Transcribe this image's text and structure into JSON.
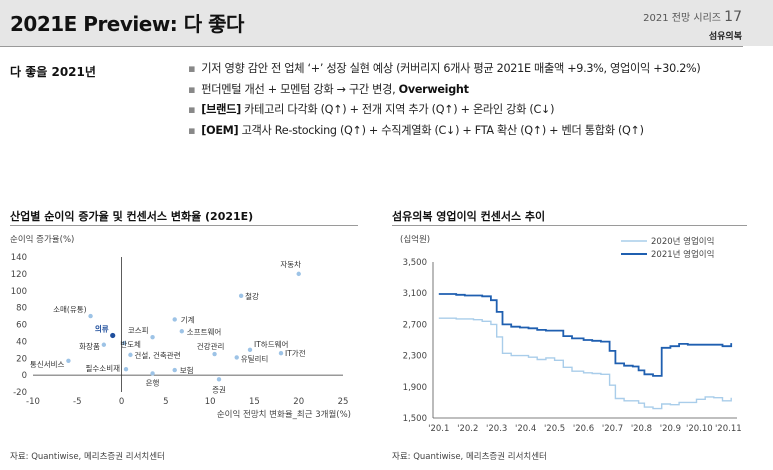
{
  "header": {
    "title": "2021E Preview: 다 좋다",
    "series_label": "2021 전망 시리즈",
    "series_number": "17",
    "section": "섬유의복"
  },
  "summary": {
    "label": "다 좋을 2021년",
    "bullets": [
      {
        "bold": "",
        "text": "기저 영향 감안 전 업체 ‘+’ 성장 실현 예상 (커버리지 6개사 평균 2021E 매출액 +9.3%, 영업이익 +30.2%)"
      },
      {
        "bold": "",
        "text": "펀더멘털 개선 + 모멘텀 강화 → 구간 변경, ",
        "tail_bold": "Overweight"
      },
      {
        "bold": "[브랜드]",
        "text": " 카테고리 다각화 (Q↑) + 전개 지역 추가 (Q↑) + 온라인 강화 (C↓)"
      },
      {
        "bold": "[OEM]",
        "text": " 고객사 Re-stocking (Q↑) + 수직계열화 (C↓) + FTA 확산 (Q↑) + 벤더 통합화 (Q↑)"
      }
    ]
  },
  "left_chart": {
    "title": "산업별 순이익 증가율 및 컨센서스 변화율 (2021E)",
    "source": "자료: Quantiwise, 메리츠증권 리서치센터"
  },
  "right_chart": {
    "title": "섬유의복 영업이익 컨센서스 추이",
    "source": "자료: Quantiwise, 메리츠증권 리서치센터"
  },
  "chart_data": [
    {
      "type": "scatter",
      "ylabel": "순이익 증가율(%)",
      "xlabel": "순이익 전망치 변화율_최근 3개월(%)",
      "xlim": [
        -10,
        25
      ],
      "ylim": [
        -20,
        140
      ],
      "xticks": [
        -10,
        -5,
        0,
        5,
        10,
        15,
        20,
        25
      ],
      "yticks": [
        -20,
        0,
        20,
        40,
        60,
        80,
        100,
        120,
        140
      ],
      "highlight_color": "#1f4e9c",
      "point_color": "#9dc3e6",
      "points": [
        {
          "label": "자동차",
          "x": 20.0,
          "y": 120
        },
        {
          "label": "철강",
          "x": 13.5,
          "y": 94
        },
        {
          "label": "소매(유통)",
          "x": -3.5,
          "y": 70
        },
        {
          "label": "기계",
          "x": 6.0,
          "y": 66
        },
        {
          "label": "소프트웨어",
          "x": 6.8,
          "y": 52
        },
        {
          "label": "코스피",
          "x": 3.5,
          "y": 45
        },
        {
          "label": "의류",
          "x": -1.0,
          "y": 47,
          "highlight": true
        },
        {
          "label": "반도체",
          "x": 0.3,
          "y": 38
        },
        {
          "label": "화장품",
          "x": -2.0,
          "y": 36
        },
        {
          "label": "건강관리",
          "x": 10.5,
          "y": 25
        },
        {
          "label": "IT하드웨어",
          "x": 14.5,
          "y": 30
        },
        {
          "label": "IT가전",
          "x": 18.0,
          "y": 26
        },
        {
          "label": "유틸리티",
          "x": 13.0,
          "y": 21
        },
        {
          "label": "건설, 건축관련",
          "x": 1.0,
          "y": 24
        },
        {
          "label": "통신서비스",
          "x": -6.0,
          "y": 17
        },
        {
          "label": "필수소비재",
          "x": 0.5,
          "y": 7
        },
        {
          "label": "보험",
          "x": 6.0,
          "y": 6
        },
        {
          "label": "은행",
          "x": 3.5,
          "y": 2
        },
        {
          "label": "증권",
          "x": 11.0,
          "y": -5
        }
      ]
    },
    {
      "type": "line",
      "ylabel": "(십억원)",
      "ylim": [
        1500,
        3500
      ],
      "yticks": [
        1500,
        1900,
        2300,
        2700,
        3100,
        3500
      ],
      "ytick_labels": [
        "1,500",
        "1,900",
        "2,300",
        "2,700",
        "3,100",
        "3,500"
      ],
      "xtick_labels": [
        "'20.1",
        "'20.2",
        "'20.3",
        "'20.4",
        "'20.5",
        "'20.6",
        "'20.7",
        "'20.8",
        "'20.9",
        "'20.10",
        "'20.11"
      ],
      "x_months": [
        1,
        2,
        3,
        4,
        5,
        6,
        7,
        8,
        9,
        10,
        11
      ],
      "legend_position": "top-right",
      "series": [
        {
          "name": "2020년 영업이익",
          "color": "#a9cdea",
          "x": [
            1.0,
            1.3,
            1.6,
            1.9,
            2.2,
            2.5,
            2.8,
            3.0,
            3.2,
            3.5,
            3.8,
            4.1,
            4.4,
            4.7,
            5.0,
            5.3,
            5.6,
            6.0,
            6.3,
            6.6,
            6.9,
            7.1,
            7.4,
            7.7,
            7.9,
            8.1,
            8.4,
            8.7,
            9.0,
            9.3,
            9.6,
            9.9,
            10.2,
            10.5,
            10.8,
            11.1
          ],
          "values": [
            2780,
            2780,
            2770,
            2770,
            2760,
            2740,
            2700,
            2540,
            2330,
            2300,
            2300,
            2280,
            2250,
            2270,
            2240,
            2150,
            2100,
            2080,
            2070,
            2060,
            1920,
            1750,
            1720,
            1720,
            1690,
            1640,
            1620,
            1680,
            1670,
            1700,
            1700,
            1740,
            1770,
            1760,
            1720,
            1760
          ]
        },
        {
          "name": "2021년 영업이익",
          "color": "#1f5fb0",
          "x": [
            1.0,
            1.3,
            1.6,
            1.9,
            2.2,
            2.5,
            2.8,
            3.0,
            3.2,
            3.5,
            3.8,
            4.1,
            4.4,
            4.7,
            5.0,
            5.3,
            5.6,
            6.0,
            6.3,
            6.6,
            6.9,
            7.1,
            7.4,
            7.7,
            7.9,
            8.1,
            8.4,
            8.7,
            9.0,
            9.3,
            9.6,
            9.9,
            10.2,
            10.5,
            10.8,
            11.1
          ],
          "values": [
            3090,
            3090,
            3080,
            3070,
            3070,
            3060,
            3010,
            2860,
            2700,
            2670,
            2660,
            2650,
            2630,
            2620,
            2620,
            2550,
            2520,
            2500,
            2490,
            2480,
            2360,
            2200,
            2170,
            2160,
            2110,
            2060,
            2040,
            2400,
            2420,
            2450,
            2440,
            2440,
            2440,
            2440,
            2420,
            2460
          ]
        }
      ]
    }
  ]
}
